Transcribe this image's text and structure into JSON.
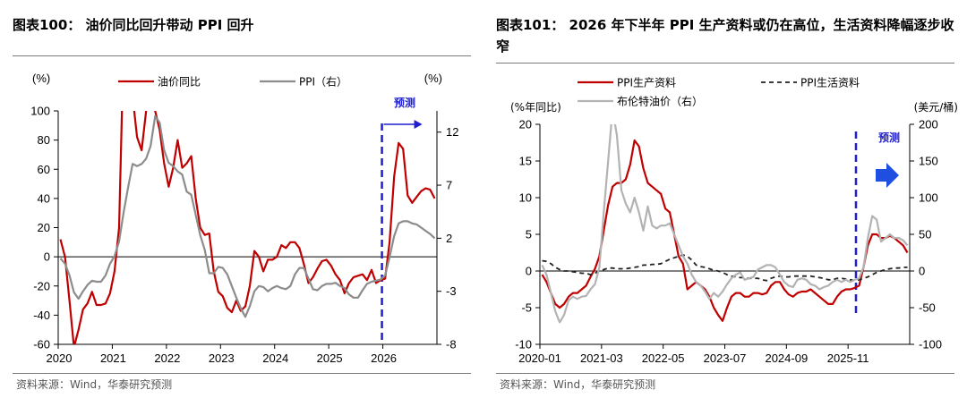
{
  "chart_data": [
    {
      "type": "line",
      "title": "图表100： 油价同比回升带动 PPI 回升",
      "source": "资料来源：Wind，华泰研究预测",
      "forecast_label": "预测",
      "y_left_label": "(%)",
      "y_right_label": "(%)",
      "y_left_lim": [
        -60,
        100
      ],
      "y_left_ticks": [
        "100",
        "80",
        "60",
        "40",
        "20",
        "0",
        "-20",
        "-40",
        "-60"
      ],
      "y_right_lim": [
        -8,
        14
      ],
      "y_right_ticks": [
        "12",
        "7",
        "2",
        "-3",
        "-8"
      ],
      "x_ticks": [
        "2020",
        "2021",
        "2022",
        "2023",
        "2024",
        "2025",
        "2026"
      ],
      "x_range": [
        "2020-01",
        "2026-12"
      ],
      "forecast_start": "2026-01",
      "series": [
        {
          "name": "油价同比",
          "axis": "left",
          "color": "#c00000",
          "x": [
            "2020-01",
            "2020-02",
            "2020-03",
            "2020-04",
            "2020-05",
            "2020-06",
            "2020-07",
            "2020-08",
            "2020-09",
            "2020-10",
            "2020-11",
            "2020-12",
            "2021-01",
            "2021-02",
            "2021-03",
            "2021-04",
            "2021-05",
            "2021-06",
            "2021-07",
            "2021-08",
            "2021-09",
            "2021-10",
            "2021-11",
            "2021-12",
            "2022-01",
            "2022-02",
            "2022-03",
            "2022-04",
            "2022-05",
            "2022-06",
            "2022-07",
            "2022-08",
            "2022-09",
            "2022-10",
            "2022-11",
            "2022-12",
            "2023-01",
            "2023-02",
            "2023-03",
            "2023-04",
            "2023-05",
            "2023-06",
            "2023-07",
            "2023-08",
            "2023-09",
            "2023-10",
            "2023-11",
            "2023-12",
            "2024-01",
            "2024-02",
            "2024-03",
            "2024-04",
            "2024-05",
            "2024-06",
            "2024-07",
            "2024-08",
            "2024-09",
            "2024-10",
            "2024-11",
            "2024-12",
            "2025-01",
            "2025-02",
            "2025-03",
            "2025-04",
            "2025-05",
            "2025-06",
            "2025-07",
            "2025-08",
            "2025-09",
            "2025-10",
            "2025-11",
            "2025-12",
            "2026-01",
            "2026-02",
            "2026-03",
            "2026-04",
            "2026-05",
            "2026-06",
            "2026-07",
            "2026-08",
            "2026-09",
            "2026-10",
            "2026-11",
            "2026-12"
          ],
          "values": [
            12,
            0,
            -30,
            -62,
            -50,
            -36,
            -32,
            -24,
            -33,
            -33,
            -32,
            -25,
            -10,
            20,
            145,
            186,
            110,
            82,
            73,
            100,
            108,
            100,
            87,
            64,
            48,
            61,
            80,
            61,
            64,
            69,
            40,
            20,
            15,
            16,
            -10,
            -24,
            -27,
            -35,
            -38,
            -30,
            -37,
            -34,
            -20,
            4,
            0,
            -10,
            -2,
            -2,
            0,
            8,
            6,
            10,
            10,
            6,
            -5,
            -18,
            -14,
            -8,
            -3,
            -2,
            -6,
            -12,
            -16,
            -25,
            -18,
            -14,
            -13,
            -12,
            -16,
            -9,
            -18,
            -16,
            -15,
            10,
            55,
            78,
            74,
            42,
            37,
            41,
            45,
            47,
            46,
            40
          ]
        },
        {
          "name": "PPI（右）",
          "axis": "right",
          "color": "#8c8c8c",
          "x": [
            "2020-01",
            "2020-02",
            "2020-03",
            "2020-04",
            "2020-05",
            "2020-06",
            "2020-07",
            "2020-08",
            "2020-09",
            "2020-10",
            "2020-11",
            "2020-12",
            "2021-01",
            "2021-02",
            "2021-03",
            "2021-04",
            "2021-05",
            "2021-06",
            "2021-07",
            "2021-08",
            "2021-09",
            "2021-10",
            "2021-11",
            "2021-12",
            "2022-01",
            "2022-02",
            "2022-03",
            "2022-04",
            "2022-05",
            "2022-06",
            "2022-07",
            "2022-08",
            "2022-09",
            "2022-10",
            "2022-11",
            "2022-12",
            "2023-01",
            "2023-02",
            "2023-03",
            "2023-04",
            "2023-05",
            "2023-06",
            "2023-07",
            "2023-08",
            "2023-09",
            "2023-10",
            "2023-11",
            "2023-12",
            "2024-01",
            "2024-02",
            "2024-03",
            "2024-04",
            "2024-05",
            "2024-06",
            "2024-07",
            "2024-08",
            "2024-09",
            "2024-10",
            "2024-11",
            "2024-12",
            "2025-01",
            "2025-02",
            "2025-03",
            "2025-04",
            "2025-05",
            "2025-06",
            "2025-07",
            "2025-08",
            "2025-09",
            "2025-10",
            "2025-11",
            "2025-12",
            "2026-01",
            "2026-02",
            "2026-03",
            "2026-04",
            "2026-05",
            "2026-06",
            "2026-07",
            "2026-08",
            "2026-09",
            "2026-10",
            "2026-11",
            "2026-12"
          ],
          "values": [
            0.1,
            -0.4,
            -1.5,
            -3.1,
            -3.7,
            -3.0,
            -2.4,
            -2.0,
            -2.1,
            -2.1,
            -1.5,
            -0.4,
            0.3,
            1.7,
            4.4,
            6.8,
            9.0,
            8.8,
            9.0,
            9.5,
            10.7,
            13.5,
            12.9,
            10.3,
            9.1,
            8.8,
            8.3,
            8.0,
            6.4,
            6.1,
            4.2,
            2.3,
            0.9,
            -1.3,
            -1.3,
            -0.7,
            -0.8,
            -1.4,
            -2.5,
            -3.6,
            -4.6,
            -5.4,
            -4.4,
            -3.0,
            -2.5,
            -2.6,
            -3.0,
            -2.7,
            -2.5,
            -2.7,
            -2.8,
            -2.5,
            -1.4,
            -0.8,
            -0.8,
            -1.8,
            -2.8,
            -2.9,
            -2.5,
            -2.3,
            -2.3,
            -2.2,
            -2.5,
            -2.7,
            -3.3,
            -3.6,
            -3.6,
            -2.9,
            -2.3,
            -2.1,
            -2.0,
            -1.9,
            -1.5,
            0.2,
            2.2,
            3.4,
            3.6,
            3.6,
            3.4,
            3.3,
            3.0,
            2.7,
            2.4,
            2.0
          ]
        }
      ]
    },
    {
      "type": "line",
      "title": "图表101： 2026 年下半年 PPI 生产资料或仍在高位，生活资料降幅逐步收窄",
      "source": "资料来源：Wind，华泰研究预测",
      "forecast_label": "预测",
      "y_left_label": "(%年同比)",
      "y_right_label": "(美元/桶)",
      "y_left_lim": [
        -10,
        20
      ],
      "y_left_ticks": [
        "20",
        "15",
        "10",
        "5",
        "0",
        "-5",
        "-10"
      ],
      "y_right_lim": [
        -100,
        200
      ],
      "y_right_ticks": [
        "200",
        "150",
        "100",
        "50",
        "0",
        "-50",
        "-100"
      ],
      "x_ticks": [
        "2020-01",
        "2021-03",
        "2022-05",
        "2023-07",
        "2024-09",
        "2025-11"
      ],
      "x_range": [
        "2020-01",
        "2026-12"
      ],
      "forecast_start": "2026-01",
      "series": [
        {
          "name": "PPI生产资料",
          "axis": "left",
          "color": "#c00000",
          "x": [
            "2020-01",
            "2020-02",
            "2020-03",
            "2020-04",
            "2020-05",
            "2020-06",
            "2020-07",
            "2020-08",
            "2020-09",
            "2020-10",
            "2020-11",
            "2020-12",
            "2021-01",
            "2021-02",
            "2021-03",
            "2021-04",
            "2021-05",
            "2021-06",
            "2021-07",
            "2021-08",
            "2021-09",
            "2021-10",
            "2021-11",
            "2021-12",
            "2022-01",
            "2022-02",
            "2022-03",
            "2022-04",
            "2022-05",
            "2022-06",
            "2022-07",
            "2022-08",
            "2022-09",
            "2022-10",
            "2022-11",
            "2022-12",
            "2023-01",
            "2023-02",
            "2023-03",
            "2023-04",
            "2023-05",
            "2023-06",
            "2023-07",
            "2023-08",
            "2023-09",
            "2023-10",
            "2023-11",
            "2023-12",
            "2024-01",
            "2024-02",
            "2024-03",
            "2024-04",
            "2024-05",
            "2024-06",
            "2024-07",
            "2024-08",
            "2024-09",
            "2024-10",
            "2024-11",
            "2024-12",
            "2025-01",
            "2025-02",
            "2025-03",
            "2025-04",
            "2025-05",
            "2025-06",
            "2025-07",
            "2025-08",
            "2025-09",
            "2025-10",
            "2025-11",
            "2025-12",
            "2026-01",
            "2026-02",
            "2026-03",
            "2026-04",
            "2026-05",
            "2026-06",
            "2026-07",
            "2026-08",
            "2026-09",
            "2026-10",
            "2026-11",
            "2026-12"
          ],
          "values": [
            -0.5,
            -1.5,
            -3.0,
            -4.5,
            -5.0,
            -4.5,
            -3.5,
            -3.0,
            -3.0,
            -2.5,
            -2.0,
            -0.8,
            0.3,
            2.0,
            5.5,
            9.0,
            11.5,
            12.0,
            12.0,
            12.5,
            14.5,
            17.8,
            17.0,
            14.0,
            12.0,
            11.5,
            11.0,
            10.5,
            8.5,
            8.0,
            5.0,
            2.0,
            1.0,
            -2.5,
            -2.0,
            -1.5,
            -2.0,
            -2.5,
            -3.5,
            -5.0,
            -6.0,
            -6.8,
            -5.0,
            -3.5,
            -3.0,
            -3.0,
            -3.5,
            -3.5,
            -3.0,
            -3.0,
            -3.2,
            -3.0,
            -2.0,
            -1.5,
            -1.5,
            -2.5,
            -3.2,
            -3.5,
            -3.0,
            -2.8,
            -2.8,
            -2.5,
            -3.0,
            -3.5,
            -4.0,
            -4.5,
            -4.5,
            -3.5,
            -2.8,
            -2.5,
            -2.5,
            -2.3,
            -2.0,
            0.5,
            3.5,
            5.0,
            5.0,
            4.5,
            4.5,
            4.8,
            4.5,
            4.0,
            3.5,
            2.5
          ]
        },
        {
          "name": "PPI生活资料",
          "axis": "left",
          "color": "#222222",
          "dashed": true,
          "x": [
            "2020-01",
            "2020-02",
            "2020-03",
            "2020-04",
            "2020-05",
            "2020-06",
            "2020-07",
            "2020-08",
            "2020-09",
            "2020-10",
            "2020-11",
            "2020-12",
            "2021-01",
            "2021-02",
            "2021-03",
            "2021-04",
            "2021-05",
            "2021-06",
            "2021-07",
            "2021-08",
            "2021-09",
            "2021-10",
            "2021-11",
            "2021-12",
            "2022-01",
            "2022-02",
            "2022-03",
            "2022-04",
            "2022-05",
            "2022-06",
            "2022-07",
            "2022-08",
            "2022-09",
            "2022-10",
            "2022-11",
            "2022-12",
            "2023-01",
            "2023-02",
            "2023-03",
            "2023-04",
            "2023-05",
            "2023-06",
            "2023-07",
            "2023-08",
            "2023-09",
            "2023-10",
            "2023-11",
            "2023-12",
            "2024-01",
            "2024-02",
            "2024-03",
            "2024-04",
            "2024-05",
            "2024-06",
            "2024-07",
            "2024-08",
            "2024-09",
            "2024-10",
            "2024-11",
            "2024-12",
            "2025-01",
            "2025-02",
            "2025-03",
            "2025-04",
            "2025-05",
            "2025-06",
            "2025-07",
            "2025-08",
            "2025-09",
            "2025-10",
            "2025-11",
            "2025-12",
            "2026-01",
            "2026-02",
            "2026-03",
            "2026-04",
            "2026-05",
            "2026-06",
            "2026-07",
            "2026-08",
            "2026-09",
            "2026-10",
            "2026-11",
            "2026-12"
          ],
          "values": [
            1.4,
            1.3,
            1.0,
            0.5,
            0.2,
            0.0,
            0.0,
            -0.1,
            -0.2,
            -0.3,
            -0.3,
            -0.5,
            -0.3,
            0.0,
            0.2,
            0.4,
            0.4,
            0.3,
            0.3,
            0.3,
            0.4,
            0.5,
            0.6,
            0.8,
            0.8,
            0.9,
            0.9,
            1.0,
            1.3,
            1.6,
            1.8,
            2.0,
            2.2,
            2.0,
            1.5,
            0.8,
            0.6,
            0.5,
            0.3,
            0.1,
            0.0,
            -0.2,
            -0.5,
            -0.7,
            -0.8,
            -0.9,
            -0.9,
            -1.0,
            -1.0,
            -1.0,
            -1.2,
            -1.3,
            -1.0,
            -0.8,
            -0.7,
            -0.8,
            -0.8,
            -0.7,
            -0.7,
            -0.7,
            -0.7,
            -0.7,
            -0.8,
            -0.9,
            -1.0,
            -1.2,
            -1.2,
            -1.0,
            -1.0,
            -1.1,
            -1.2,
            -1.3,
            -1.2,
            -1.0,
            -0.8,
            -0.5,
            -0.2,
            0.0,
            0.2,
            0.3,
            0.4,
            0.4,
            0.5,
            0.5
          ]
        },
        {
          "name": "布伦特油价（右）",
          "axis": "right",
          "color": "#b3b3b3",
          "x": [
            "2020-01",
            "2020-02",
            "2020-03",
            "2020-04",
            "2020-05",
            "2020-06",
            "2020-07",
            "2020-08",
            "2020-09",
            "2020-10",
            "2020-11",
            "2020-12",
            "2021-01",
            "2021-02",
            "2021-03",
            "2021-04",
            "2021-05",
            "2021-06",
            "2021-07",
            "2021-08",
            "2021-09",
            "2021-10",
            "2021-11",
            "2021-12",
            "2022-01",
            "2022-02",
            "2022-03",
            "2022-04",
            "2022-05",
            "2022-06",
            "2022-07",
            "2022-08",
            "2022-09",
            "2022-10",
            "2022-11",
            "2022-12",
            "2023-01",
            "2023-02",
            "2023-03",
            "2023-04",
            "2023-05",
            "2023-06",
            "2023-07",
            "2023-08",
            "2023-09",
            "2023-10",
            "2023-11",
            "2023-12",
            "2024-01",
            "2024-02",
            "2024-03",
            "2024-04",
            "2024-05",
            "2024-06",
            "2024-07",
            "2024-08",
            "2024-09",
            "2024-10",
            "2024-11",
            "2024-12",
            "2025-01",
            "2025-02",
            "2025-03",
            "2025-04",
            "2025-05",
            "2025-06",
            "2025-07",
            "2025-08",
            "2025-09",
            "2025-10",
            "2025-11",
            "2025-12",
            "2026-01",
            "2026-02",
            "2026-03",
            "2026-04",
            "2026-05",
            "2026-06",
            "2026-07",
            "2026-08",
            "2026-09",
            "2026-10",
            "2026-11",
            "2026-12"
          ],
          "values": [
            8,
            -5,
            -30,
            -55,
            -70,
            -60,
            -40,
            -35,
            -38,
            -35,
            -34,
            -25,
            -18,
            5,
            80,
            150,
            220,
            185,
            110,
            92,
            80,
            100,
            80,
            55,
            88,
            62,
            58,
            62,
            62,
            65,
            50,
            35,
            20,
            10,
            -5,
            -15,
            -20,
            -28,
            -38,
            -30,
            -35,
            -28,
            -18,
            -10,
            -5,
            -2,
            -12,
            -10,
            -8,
            2,
            5,
            8,
            8,
            5,
            -5,
            -15,
            -20,
            -22,
            -12,
            -10,
            -12,
            -18,
            -20,
            -25,
            -22,
            -20,
            -15,
            -12,
            -15,
            -12,
            -15,
            -12,
            -10,
            5,
            45,
            75,
            70,
            40,
            45,
            50,
            45,
            45,
            42,
            35
          ]
        }
      ]
    }
  ]
}
